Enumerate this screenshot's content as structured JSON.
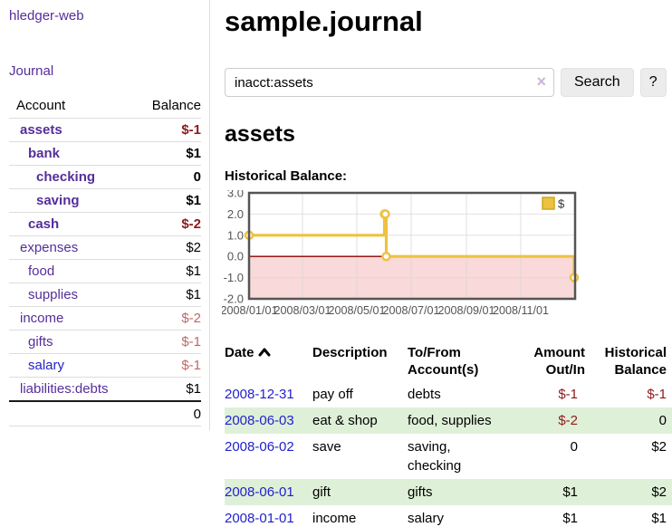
{
  "brand": "hledger-web",
  "sidebar": {
    "nav_journal": "Journal",
    "accounts_table": {
      "col_account": "Account",
      "col_balance": "Balance",
      "rows": [
        {
          "account": "assets",
          "balance": "$-1",
          "rowcls": "strong ind0",
          "balcls": "neg-strong",
          "linkcls": ""
        },
        {
          "account": "bank",
          "balance": "$1",
          "rowcls": "strong ind1",
          "balcls": "",
          "linkcls": ""
        },
        {
          "account": "checking",
          "balance": "0",
          "rowcls": "strong ind2",
          "balcls": "",
          "linkcls": ""
        },
        {
          "account": "saving",
          "balance": "$1",
          "rowcls": "strong ind2",
          "balcls": "",
          "linkcls": ""
        },
        {
          "account": "cash",
          "balance": "$-2",
          "rowcls": "strong ind1",
          "balcls": "neg-strong",
          "linkcls": ""
        },
        {
          "account": "expenses",
          "balance": "$2",
          "rowcls": "ind0",
          "balcls": "",
          "linkcls": ""
        },
        {
          "account": "food",
          "balance": "$1",
          "rowcls": "ind1",
          "balcls": "",
          "linkcls": ""
        },
        {
          "account": "supplies",
          "balance": "$1",
          "rowcls": "ind1",
          "balcls": "",
          "linkcls": ""
        },
        {
          "account": "income",
          "balance": "$-2",
          "rowcls": "ind0",
          "balcls": "neg-soft",
          "linkcls": ""
        },
        {
          "account": "gifts",
          "balance": "$-1",
          "rowcls": "ind1",
          "balcls": "neg-soft",
          "linkcls": ""
        },
        {
          "account": "salary",
          "balance": "$-1",
          "rowcls": "ind1",
          "balcls": "neg-soft",
          "linkcls": "blue"
        },
        {
          "account": "liabilities:debts",
          "balance": "$1",
          "rowcls": "ind0",
          "balcls": "",
          "linkcls": ""
        }
      ],
      "total": "0"
    }
  },
  "main": {
    "title": "sample.journal",
    "search": {
      "value": "inacct:assets",
      "clear_label": "×",
      "search_button": "Search",
      "help_button": "?"
    },
    "account_heading": "assets",
    "chart_title": "Historical Balance:"
  },
  "chart_data": {
    "type": "line",
    "style": "step-after",
    "title": "Historical Balance:",
    "series": [
      {
        "name": "$",
        "color": "#edc240",
        "points": [
          [
            "2008/01/01",
            1
          ],
          [
            "2008/06/01",
            2
          ],
          [
            "2008/06/02",
            2
          ],
          [
            "2008/06/03",
            0
          ],
          [
            "2008/12/31",
            -1
          ]
        ]
      }
    ],
    "x_domain": [
      "2008/01/01",
      "2009/01/01"
    ],
    "x_ticks": [
      "2008/01/01",
      "2008/03/01",
      "2008/05/01",
      "2008/07/01",
      "2008/09/01",
      "2008/11/01"
    ],
    "ylim": [
      -2,
      3
    ],
    "y_ticks": [
      3,
      2,
      1,
      0,
      -1,
      -2
    ],
    "y_tick_labels": [
      "3.0",
      "2.0",
      "1.0",
      "0.0",
      "-1.0",
      "-2.0"
    ],
    "legend": {
      "label": "$",
      "position": "top-right",
      "swatch_color": "#edc240",
      "swatch_border": "#cda former"
    },
    "grid": true,
    "colors": {
      "negative_region": "#f9d9d9",
      "zero_line": "#8b0000",
      "plot_border": "#545454",
      "gridline": "#d8d8d8",
      "tick_text": "#545454",
      "point_fill": "#ffffff"
    }
  },
  "register": {
    "headers": {
      "date": "Date",
      "description": "Description",
      "accounts": "To/From Account(s)",
      "amount": "Amount Out/In",
      "balance": "Historical Balance"
    },
    "sort": "ascending",
    "rows": [
      {
        "date": "2008-12-31",
        "description": "pay off",
        "accounts": "debts",
        "amount": "$-1",
        "amountcls": "neg",
        "balance": "$-1",
        "balancecls": "neg"
      },
      {
        "date": "2008-06-03",
        "description": "eat & shop",
        "accounts": "food, supplies",
        "amount": "$-2",
        "amountcls": "neg",
        "balance": "0",
        "balancecls": ""
      },
      {
        "date": "2008-06-02",
        "description": "save",
        "accounts": "saving, checking",
        "amount": "0",
        "amountcls": "",
        "balance": "$2",
        "balancecls": ""
      },
      {
        "date": "2008-06-01",
        "description": "gift",
        "accounts": "gifts",
        "amount": "$1",
        "amountcls": "",
        "balance": "$2",
        "balancecls": ""
      },
      {
        "date": "2008-01-01",
        "description": "income",
        "accounts": "salary",
        "amount": "$1",
        "amountcls": "",
        "balance": "$1",
        "balancecls": ""
      }
    ]
  }
}
